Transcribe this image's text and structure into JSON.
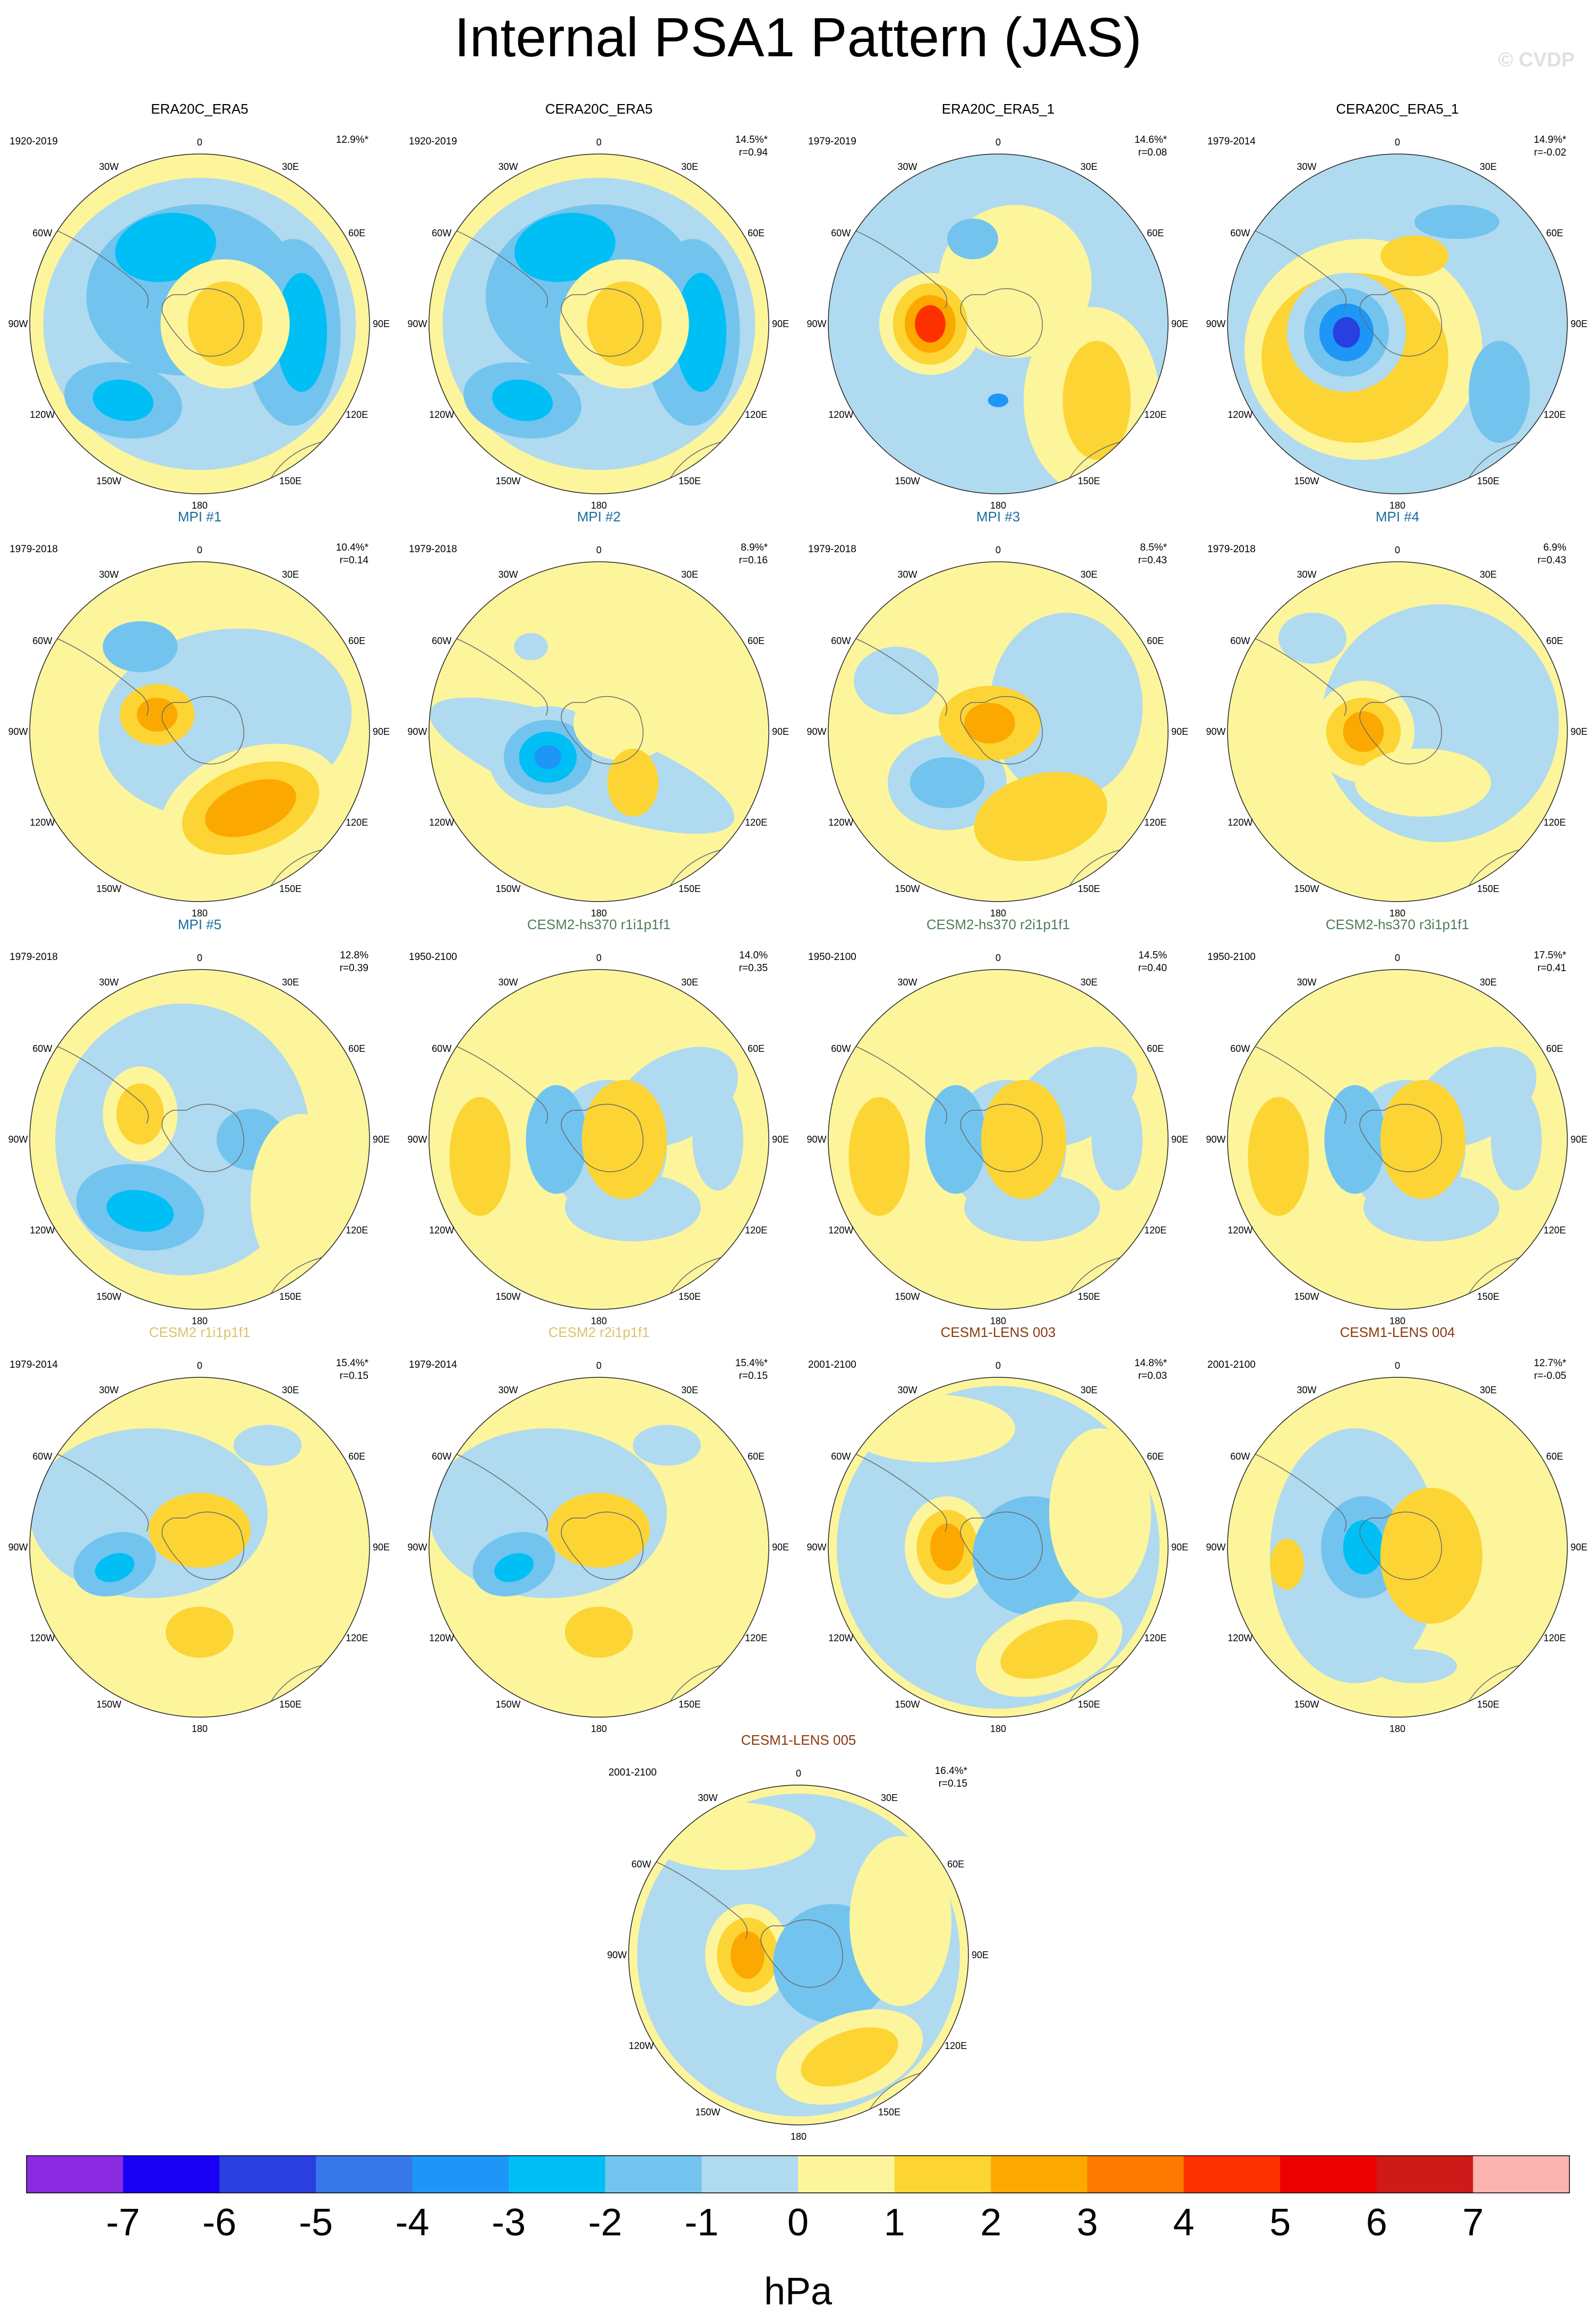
{
  "title": "Internal PSA1 Pattern (JAS)",
  "watermark": "© CVDP",
  "lon_labels": [
    "0",
    "30E",
    "60E",
    "90E",
    "120E",
    "150E",
    "180",
    "150W",
    "120W",
    "90W",
    "60W",
    "30W"
  ],
  "panels": [
    {
      "title": "ERA20C_ERA5",
      "title_color": "#000000",
      "years": "1920-2019",
      "pct": "12.9%*",
      "r": "",
      "pattern": 0
    },
    {
      "title": "CERA20C_ERA5",
      "title_color": "#000000",
      "years": "1920-2019",
      "pct": "14.5%*",
      "r": "r=0.94",
      "pattern": 0
    },
    {
      "title": "ERA20C_ERA5_1",
      "title_color": "#000000",
      "years": "1979-2019",
      "pct": "14.6%*",
      "r": "r=0.08",
      "pattern": 1
    },
    {
      "title": "CERA20C_ERA5_1",
      "title_color": "#000000",
      "years": "1979-2014",
      "pct": "14.9%*",
      "r": "r=-0.02",
      "pattern": 2
    },
    {
      "title": "MPI #1",
      "title_color": "#1a6e9e",
      "years": "1979-2018",
      "pct": "10.4%*",
      "r": "r=0.14",
      "pattern": 3
    },
    {
      "title": "MPI #2",
      "title_color": "#1a6e9e",
      "years": "1979-2018",
      "pct": "8.9%*",
      "r": "r=0.16",
      "pattern": 4
    },
    {
      "title": "MPI #3",
      "title_color": "#1a6e9e",
      "years": "1979-2018",
      "pct": "8.5%*",
      "r": "r=0.43",
      "pattern": 5
    },
    {
      "title": "MPI #4",
      "title_color": "#1a6e9e",
      "years": "1979-2018",
      "pct": "6.9%",
      "r": "r=0.43",
      "pattern": 6
    },
    {
      "title": "MPI #5",
      "title_color": "#1a6e9e",
      "years": "1979-2018",
      "pct": "12.8%",
      "r": "r=0.39",
      "pattern": 7
    },
    {
      "title": "CESM2-hs370 r1i1p1f1",
      "title_color": "#4f7d5c",
      "years": "1950-2100",
      "pct": "14.0%",
      "r": "r=0.35",
      "pattern": 8
    },
    {
      "title": "CESM2-hs370 r2i1p1f1",
      "title_color": "#4f7d5c",
      "years": "1950-2100",
      "pct": "14.5%",
      "r": "r=0.40",
      "pattern": 8
    },
    {
      "title": "CESM2-hs370 r3i1p1f1",
      "title_color": "#4f7d5c",
      "years": "1950-2100",
      "pct": "17.5%*",
      "r": "r=0.41",
      "pattern": 8
    },
    {
      "title": "CESM2 r1i1p1f1",
      "title_color": "#d9c46a",
      "years": "1979-2014",
      "pct": "15.4%*",
      "r": "r=0.15",
      "pattern": 9
    },
    {
      "title": "CESM2 r2i1p1f1",
      "title_color": "#d9c46a",
      "years": "1979-2014",
      "pct": "15.4%*",
      "r": "r=0.15",
      "pattern": 9
    },
    {
      "title": "CESM1-LENS 003",
      "title_color": "#8b3a0e",
      "years": "2001-2100",
      "pct": "14.8%*",
      "r": "r=0.03",
      "pattern": 10
    },
    {
      "title": "CESM1-LENS 004",
      "title_color": "#8b3a0e",
      "years": "2001-2100",
      "pct": "12.7%*",
      "r": "r=-0.05",
      "pattern": 11
    },
    {
      "title": "CESM1-LENS 005",
      "title_color": "#8b3a0e",
      "years": "2001-2100",
      "pct": "16.4%*",
      "r": "r=0.15",
      "pattern": 10
    }
  ],
  "colorbar": {
    "unit": "hPa",
    "levels": [
      "-7",
      "-6",
      "-5",
      "-4",
      "-3",
      "-2",
      "-1",
      "0",
      "1",
      "2",
      "3",
      "4",
      "5",
      "6",
      "7"
    ],
    "colors": [
      "#8a2be2",
      "#1a00f5",
      "#2a3fe0",
      "#3877ea",
      "#1e96f7",
      "#00bff5",
      "#72c4ef",
      "#b0daef",
      "#fdf59c",
      "#fcd534",
      "#fba900",
      "#fc7a00",
      "#fd3000",
      "#ed0000",
      "#cf1a1a",
      "#fbb4b0"
    ]
  }
}
